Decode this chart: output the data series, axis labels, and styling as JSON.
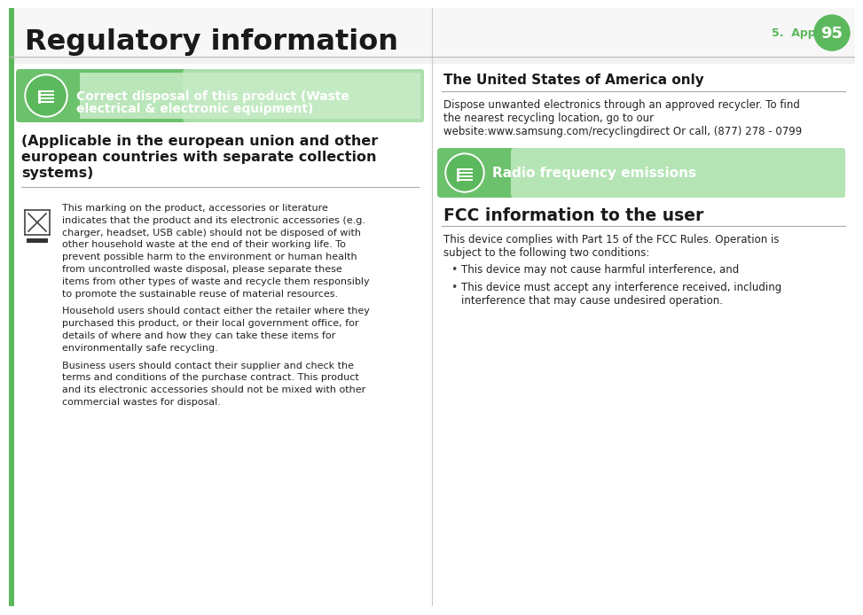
{
  "bg_color": "#ffffff",
  "green_dark": "#5cb85c",
  "green_mid": "#6cc16c",
  "green_light": "#a8e0a8",
  "green_very_light": "#c8edc8",
  "header_title": "Regulatory information",
  "appendix_text": "5.  Appendix",
  "page_num": "95",
  "banner1_line1": "Correct disposal of this product (Waste",
  "banner1_line2": "electrical & electronic equipment)",
  "applicable_line1": "(Applicable in the european union and other",
  "applicable_line2": "european countries with separate collection",
  "applicable_line3": "systems)",
  "body1_lines": [
    "This marking on the product, accessories or literature",
    "indicates that the product and its electronic accessories (e.g.",
    "charger, headset, USB cable) should not be disposed of with",
    "other household waste at the end of their working life. To",
    "prevent possible harm to the environment or human health",
    "from uncontrolled waste disposal, please separate these",
    "items from other types of waste and recycle them responsibly",
    "to promote the sustainable reuse of material resources."
  ],
  "body2_lines": [
    "Household users should contact either the retailer where they",
    "purchased this product, or their local government office, for",
    "details of where and how they can take these items for",
    "environmentally safe recycling."
  ],
  "body3_lines": [
    "Business users should contact their supplier and check the",
    "terms and conditions of the purchase contract. This product",
    "and its electronic accessories should not be mixed with other",
    "commercial wastes for disposal."
  ],
  "right_title": "The United States of America only",
  "right_body_lines": [
    "Dispose unwanted electronics through an approved recycler. To find",
    "the nearest recycling location, go to our",
    "website:www.samsung.com/recyclingdirect Or call, (877) 278 - 0799"
  ],
  "radio_text": "Radio frequency emissions",
  "fcc_title": "FCC information to the user",
  "fcc_body_lines": [
    "This device complies with Part 15 of the FCC Rules. Operation is",
    "subject to the following two conditions:"
  ],
  "fcc_bullet1": "This device may not cause harmful interference, and",
  "fcc_bullet2_lines": [
    "This device must accept any interference received, including",
    "interference that may cause undesired operation."
  ]
}
